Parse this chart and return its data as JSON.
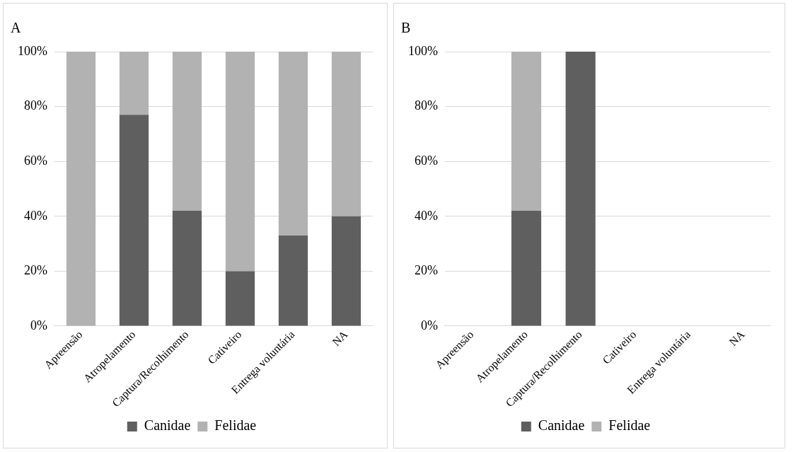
{
  "chart_data": [
    {
      "type": "bar",
      "title": "A",
      "stacked": true,
      "categories": [
        "Apreensão",
        "Atropelamento",
        "Captura/Recolhimento",
        "Cativeiro",
        "Entrega voluntária",
        "NA"
      ],
      "series": [
        {
          "name": "Canidae",
          "color": "#5f5f5f",
          "values": [
            0,
            77,
            42,
            20,
            33,
            40
          ]
        },
        {
          "name": "Felidae",
          "color": "#b2b2b2",
          "values": [
            100,
            23,
            58,
            80,
            67,
            60
          ]
        }
      ],
      "ylim": [
        0,
        100
      ],
      "yticks": [
        {
          "value": 0,
          "label": "0%"
        },
        {
          "value": 20,
          "label": "20%"
        },
        {
          "value": 40,
          "label": "40%"
        },
        {
          "value": 60,
          "label": "60%"
        },
        {
          "value": 80,
          "label": "80%"
        },
        {
          "value": 100,
          "label": "100%"
        }
      ],
      "grid": "y",
      "legend": "bottom"
    },
    {
      "type": "bar",
      "title": "B",
      "stacked": true,
      "categories": [
        "Apreensão",
        "Atropelamento",
        "Captura/Recolhimento",
        "Cativeiro",
        "Entrega voluntária",
        "NA"
      ],
      "series": [
        {
          "name": "Canidae",
          "color": "#5f5f5f",
          "values": [
            0,
            42,
            100,
            0,
            0,
            0
          ]
        },
        {
          "name": "Felidae",
          "color": "#b2b2b2",
          "values": [
            0,
            58,
            0,
            0,
            0,
            0
          ]
        }
      ],
      "ylim": [
        0,
        100
      ],
      "yticks": [
        {
          "value": 0,
          "label": "0%"
        },
        {
          "value": 20,
          "label": "20%"
        },
        {
          "value": 40,
          "label": "40%"
        },
        {
          "value": 60,
          "label": "60%"
        },
        {
          "value": 80,
          "label": "80%"
        },
        {
          "value": 100,
          "label": "100%"
        }
      ],
      "grid": "y",
      "legend": "bottom"
    }
  ]
}
